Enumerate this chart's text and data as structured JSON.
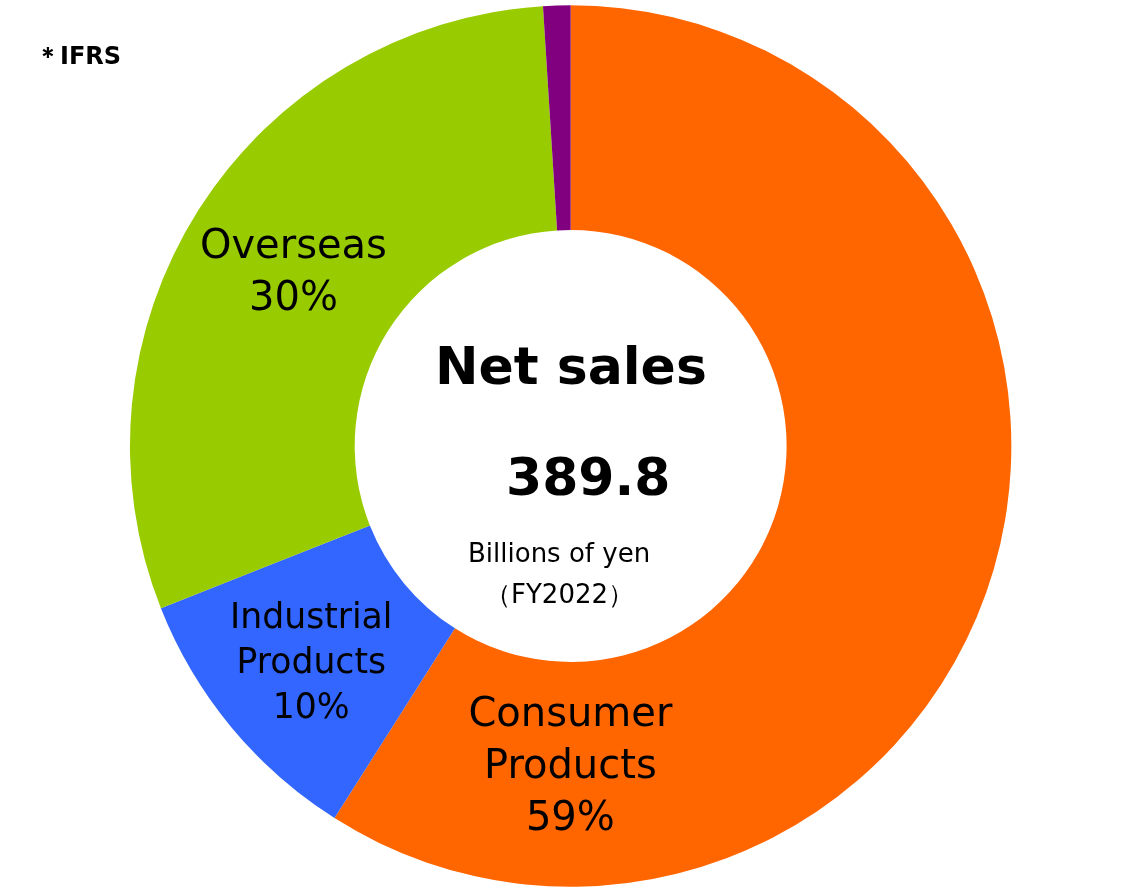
{
  "chart_data": {
    "type": "donut",
    "categories": [
      "Consumer Products",
      "Industrial Products",
      "Overseas",
      null
    ],
    "values": [
      59,
      10,
      30,
      1
    ],
    "value_labels": [
      "59%",
      "10%",
      "30%",
      null
    ],
    "colors": [
      "#ff6600",
      "#3366ff",
      "#99cc00",
      "#800080"
    ],
    "annotations": [
      "Net sales",
      "389.8",
      "Billions of yen",
      "（FY2022）",
      "＊IFRS"
    ],
    "legend": false
  }
}
